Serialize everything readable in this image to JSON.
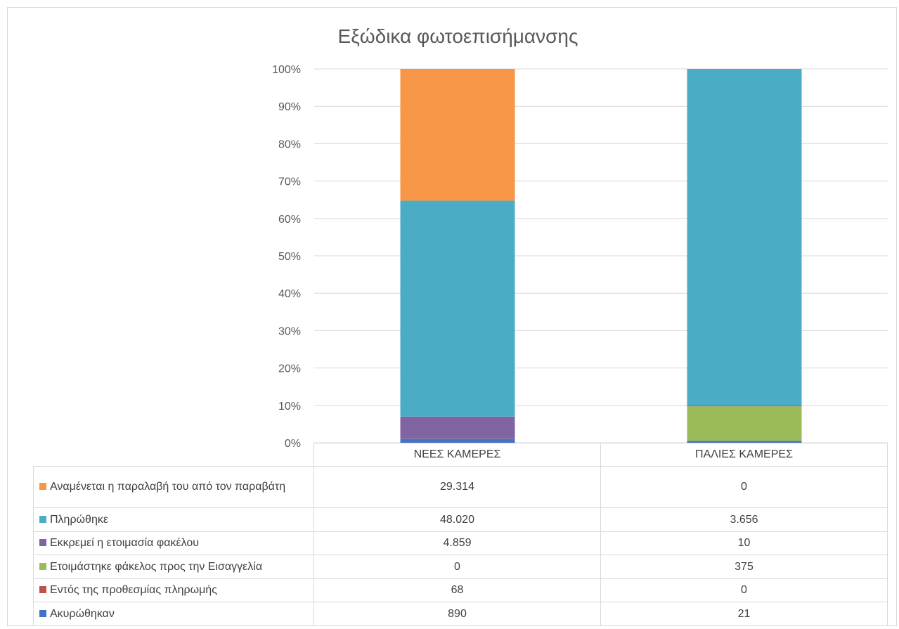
{
  "chart_data": {
    "type": "bar",
    "stacked": "percent",
    "title": "Εξώδικα φωτοεπισήμανσης",
    "categories": [
      "ΝΕΕΣ ΚΑΜΕΡΕΣ",
      "ΠΑΛΙΕΣ ΚΑΜΕΡΕΣ"
    ],
    "y_ticks": [
      "0%",
      "10%",
      "20%",
      "30%",
      "40%",
      "50%",
      "60%",
      "70%",
      "80%",
      "90%",
      "100%"
    ],
    "ylim": [
      0,
      100
    ],
    "grid": true,
    "legend": "data table with legend keys below the chart",
    "series": [
      {
        "name": "Ακυρώθηκαν",
        "color": "#4472c4",
        "values": [
          890,
          21
        ],
        "labels": [
          "890",
          "21"
        ]
      },
      {
        "name": "Εντός της προθεσμίας πληρωμής",
        "color": "#c0504d",
        "values": [
          68,
          0
        ],
        "labels": [
          "68",
          "0"
        ]
      },
      {
        "name": "Ετοιμάστηκε φάκελος προς την Εισαγγελία",
        "color": "#9bbb59",
        "values": [
          0,
          375
        ],
        "labels": [
          "0",
          "375"
        ]
      },
      {
        "name": "Εκκρεμεί η ετοιμασία φακέλου",
        "color": "#8064a2",
        "values": [
          4859,
          10
        ],
        "labels": [
          "4.859",
          "10"
        ]
      },
      {
        "name": "Πληρώθηκε",
        "color": "#4bacc6",
        "values": [
          48020,
          3656
        ],
        "labels": [
          "48.020",
          "3.656"
        ]
      },
      {
        "name": "Αναμένεται η παραλαβή του από τον παραβάτη",
        "color": "#f79646",
        "values": [
          29314,
          0
        ],
        "labels": [
          "29.314",
          "0"
        ]
      }
    ]
  }
}
